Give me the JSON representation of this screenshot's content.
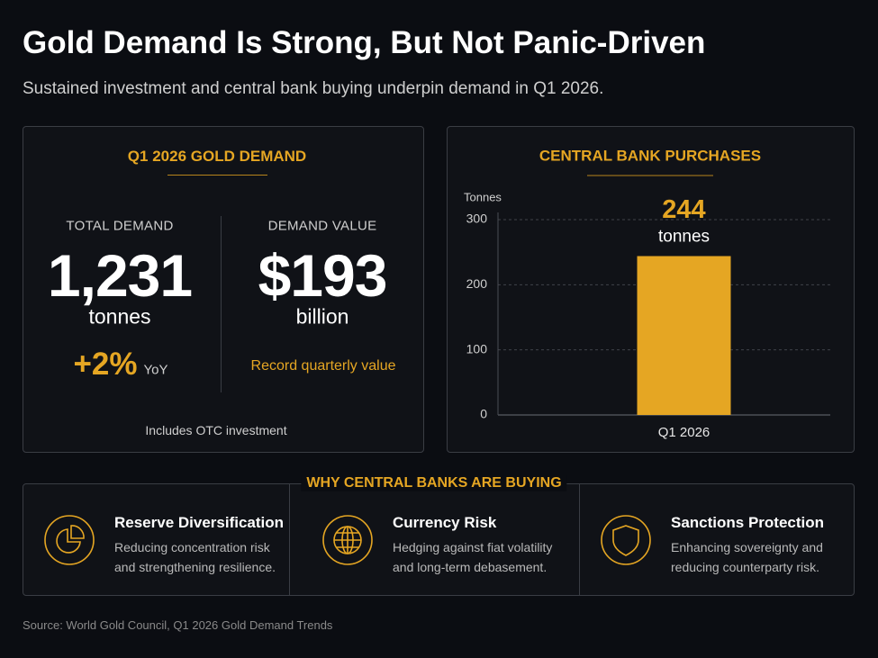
{
  "header": {
    "title": "Gold Demand Is Strong, But Not Panic-Driven",
    "subtitle": "Sustained investment and central bank buying underpin demand in Q1 2026."
  },
  "demand_card": {
    "title": "Q1 2026 GOLD DEMAND",
    "total": {
      "label": "TOTAL DEMAND",
      "value": "1,231",
      "unit": "tonnes",
      "change": "+2%",
      "change_note": "YoY"
    },
    "value": {
      "label": "DEMAND VALUE",
      "value": "$193",
      "unit": "billion",
      "note": "Record quarterly value"
    },
    "footnote": "Includes OTC investment"
  },
  "chart_data": {
    "type": "bar",
    "title": "CENTRAL BANK PURCHASES",
    "y_label": "Tonnes",
    "categories": [
      "Q1 2026"
    ],
    "values": [
      244
    ],
    "unit_label": "tonnes",
    "color": "#e5a623",
    "ylim": [
      0,
      300
    ],
    "yticks": [
      0,
      100,
      200,
      300
    ],
    "grid": true
  },
  "reasons": {
    "title": "WHY CENTRAL BANKS ARE BUYING",
    "items": [
      {
        "title": "Reserve Diversification",
        "description": [
          "Reducing concentration risk",
          "and strengthening resilience."
        ]
      },
      {
        "title": "Currency Risk",
        "description": [
          "Hedging against fiat volatility",
          "and long-term debasement."
        ]
      },
      {
        "title": "Sanctions Protection",
        "description": [
          "Enhancing sovereignty and",
          "reducing counterparty risk."
        ]
      }
    ]
  },
  "source": "Source: World Gold Council, Q1 2026 Gold Demand Trends"
}
